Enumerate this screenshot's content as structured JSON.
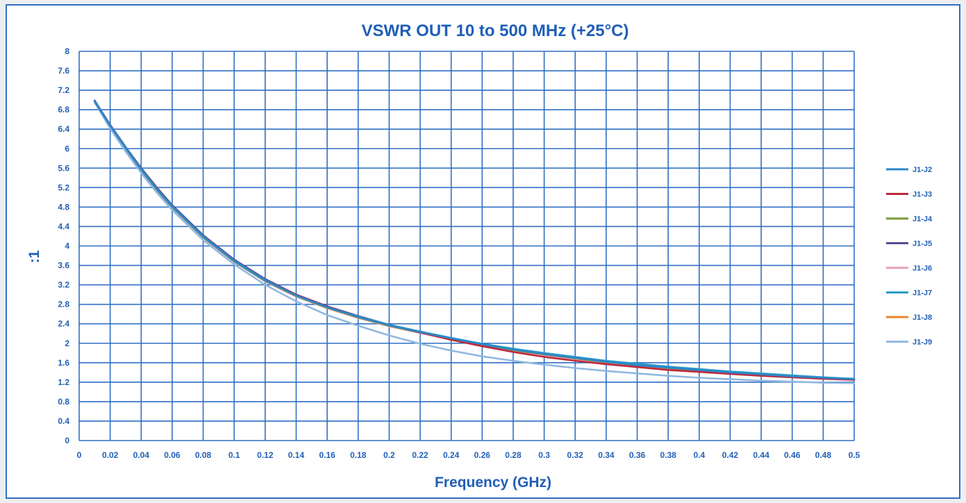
{
  "chart_data": {
    "type": "line",
    "title": "VSWR OUT  10 to 500 MHz (+25°C)",
    "xlabel": "Frequency (GHz)",
    "ylabel": ":1",
    "xlim": [
      0,
      0.5
    ],
    "ylim": [
      0,
      8
    ],
    "x_ticks": [
      "0",
      "0.02",
      "0.04",
      "0.06",
      "0.08",
      "0.1",
      "0.12",
      "0.14",
      "0.16",
      "0.18",
      "0.2",
      "0.22",
      "0.24",
      "0.26",
      "0.28",
      "0.3",
      "0.32",
      "0.34",
      "0.36",
      "0.38",
      "0.4",
      "0.42",
      "0.44",
      "0.46",
      "0.48",
      "0.5"
    ],
    "y_ticks": [
      "0",
      "0.4",
      "0.8",
      "1.2",
      "1.6",
      "2",
      "2.4",
      "2.8",
      "3.2",
      "3.6",
      "4",
      "4.4",
      "4.8",
      "5.2",
      "5.6",
      "6",
      "6.4",
      "6.8",
      "7.2",
      "7.6",
      "8"
    ],
    "grid": true,
    "legend_position": "right",
    "x": [
      0.01,
      0.02,
      0.03,
      0.04,
      0.05,
      0.06,
      0.08,
      0.1,
      0.12,
      0.14,
      0.16,
      0.18,
      0.2,
      0.22,
      0.24,
      0.26,
      0.28,
      0.3,
      0.32,
      0.34,
      0.36,
      0.38,
      0.4,
      0.42,
      0.44,
      0.46,
      0.48,
      0.5
    ],
    "series": [
      {
        "name": "J1-J2",
        "color": "#2e86c8",
        "values": [
          6.98,
          6.48,
          6.02,
          5.58,
          5.18,
          4.82,
          4.2,
          3.7,
          3.3,
          2.98,
          2.74,
          2.54,
          2.37,
          2.23,
          2.1,
          1.98,
          1.87,
          1.78,
          1.7,
          1.62,
          1.55,
          1.5,
          1.45,
          1.4,
          1.36,
          1.32,
          1.29,
          1.26
        ]
      },
      {
        "name": "J1-J3",
        "color": "#c0283a",
        "values": [
          6.97,
          6.47,
          6.01,
          5.57,
          5.17,
          4.81,
          4.19,
          3.69,
          3.3,
          2.99,
          2.75,
          2.55,
          2.38,
          2.22,
          2.07,
          1.94,
          1.82,
          1.72,
          1.64,
          1.57,
          1.51,
          1.45,
          1.41,
          1.37,
          1.33,
          1.3,
          1.27,
          1.25
        ]
      },
      {
        "name": "J1-J4",
        "color": "#7a9a38",
        "values": [
          6.96,
          6.46,
          6.0,
          5.56,
          5.16,
          4.8,
          4.18,
          3.68,
          3.28,
          2.97,
          2.73,
          2.53,
          2.36,
          2.22,
          2.09,
          1.97,
          1.86,
          1.77,
          1.69,
          1.61,
          1.55,
          1.49,
          1.44,
          1.39,
          1.35,
          1.31,
          1.28,
          1.25
        ]
      },
      {
        "name": "J1-J5",
        "color": "#5a4a98",
        "values": [
          6.99,
          6.49,
          6.03,
          5.6,
          5.2,
          4.84,
          4.22,
          3.72,
          3.32,
          3.0,
          2.76,
          2.56,
          2.38,
          2.24,
          2.1,
          1.98,
          1.87,
          1.78,
          1.7,
          1.62,
          1.55,
          1.5,
          1.45,
          1.4,
          1.36,
          1.32,
          1.29,
          1.26
        ]
      },
      {
        "name": "J1-J6",
        "color": "#e8a0b0",
        "values": [
          6.95,
          6.45,
          5.99,
          5.55,
          5.15,
          4.79,
          4.17,
          3.67,
          3.27,
          2.96,
          2.72,
          2.52,
          2.35,
          2.21,
          2.08,
          1.96,
          1.85,
          1.76,
          1.68,
          1.6,
          1.54,
          1.48,
          1.43,
          1.38,
          1.34,
          1.3,
          1.27,
          1.24
        ]
      },
      {
        "name": "J1-J7",
        "color": "#2a9ec8",
        "values": [
          6.97,
          6.47,
          6.01,
          5.57,
          5.17,
          4.81,
          4.19,
          3.69,
          3.29,
          2.98,
          2.74,
          2.55,
          2.38,
          2.24,
          2.11,
          1.99,
          1.89,
          1.8,
          1.72,
          1.64,
          1.58,
          1.52,
          1.47,
          1.42,
          1.38,
          1.34,
          1.3,
          1.27
        ]
      },
      {
        "name": "J1-J8",
        "color": "#e8842a",
        "values": [
          6.98,
          6.49,
          6.03,
          5.6,
          5.21,
          4.83,
          4.2,
          3.69,
          3.29,
          2.98,
          2.74,
          2.54,
          2.37,
          2.23,
          2.1,
          1.98,
          1.87,
          1.78,
          1.7,
          1.62,
          1.55,
          1.5,
          1.45,
          1.4,
          1.36,
          1.32,
          1.29,
          1.26
        ]
      },
      {
        "name": "J1-J9",
        "color": "#8fb8e0",
        "values": [
          6.95,
          6.42,
          5.94,
          5.5,
          5.1,
          4.74,
          4.12,
          3.62,
          3.2,
          2.86,
          2.58,
          2.36,
          2.16,
          1.99,
          1.85,
          1.73,
          1.64,
          1.56,
          1.49,
          1.43,
          1.38,
          1.33,
          1.29,
          1.26,
          1.23,
          1.21,
          1.19,
          1.18
        ]
      }
    ]
  }
}
